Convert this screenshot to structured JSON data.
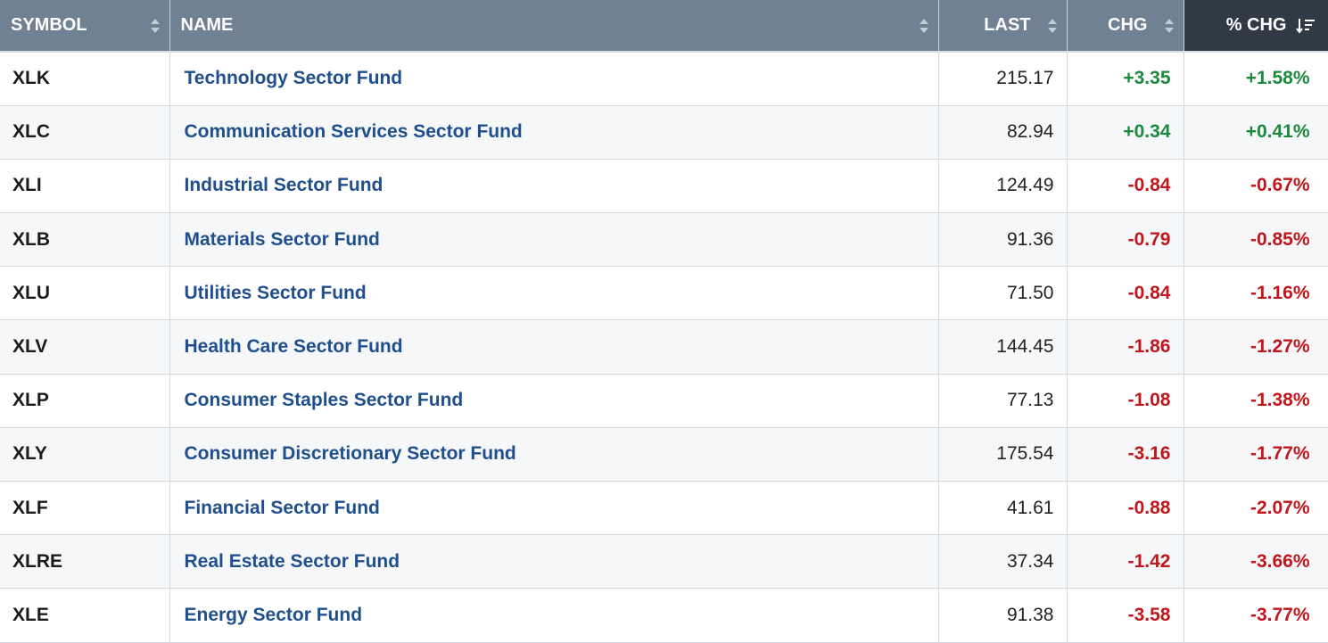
{
  "colors": {
    "header_bg": "#6f8192",
    "sorted_header_bg": "#2f3a45",
    "positive": "#1c8a3c",
    "negative": "#c0161c",
    "link": "#1f4f8c"
  },
  "columns": {
    "symbol": "SYMBOL",
    "name": "NAME",
    "last": "LAST",
    "chg": "CHG",
    "pct_chg": "% CHG"
  },
  "sort": {
    "column": "pct_chg",
    "direction": "descending",
    "icon": "sort-descending-icon"
  },
  "rows": [
    {
      "symbol": "XLK",
      "name": "Technology Sector Fund",
      "last": "215.17",
      "chg": "+3.35",
      "pct": "+1.58%",
      "dir": "pos"
    },
    {
      "symbol": "XLC",
      "name": "Communication Services Sector Fund",
      "last": "82.94",
      "chg": "+0.34",
      "pct": "+0.41%",
      "dir": "pos"
    },
    {
      "symbol": "XLI",
      "name": "Industrial Sector Fund",
      "last": "124.49",
      "chg": "-0.84",
      "pct": "-0.67%",
      "dir": "neg"
    },
    {
      "symbol": "XLB",
      "name": "Materials Sector Fund",
      "last": "91.36",
      "chg": "-0.79",
      "pct": "-0.85%",
      "dir": "neg"
    },
    {
      "symbol": "XLU",
      "name": "Utilities Sector Fund",
      "last": "71.50",
      "chg": "-0.84",
      "pct": "-1.16%",
      "dir": "neg"
    },
    {
      "symbol": "XLV",
      "name": "Health Care Sector Fund",
      "last": "144.45",
      "chg": "-1.86",
      "pct": "-1.27%",
      "dir": "neg"
    },
    {
      "symbol": "XLP",
      "name": "Consumer Staples Sector Fund",
      "last": "77.13",
      "chg": "-1.08",
      "pct": "-1.38%",
      "dir": "neg"
    },
    {
      "symbol": "XLY",
      "name": "Consumer Discretionary Sector Fund",
      "last": "175.54",
      "chg": "-3.16",
      "pct": "-1.77%",
      "dir": "neg"
    },
    {
      "symbol": "XLF",
      "name": "Financial Sector Fund",
      "last": "41.61",
      "chg": "-0.88",
      "pct": "-2.07%",
      "dir": "neg"
    },
    {
      "symbol": "XLRE",
      "name": "Real Estate Sector Fund",
      "last": "37.34",
      "chg": "-1.42",
      "pct": "-3.66%",
      "dir": "neg"
    },
    {
      "symbol": "XLE",
      "name": "Energy Sector Fund",
      "last": "91.38",
      "chg": "-3.58",
      "pct": "-3.77%",
      "dir": "neg"
    }
  ]
}
